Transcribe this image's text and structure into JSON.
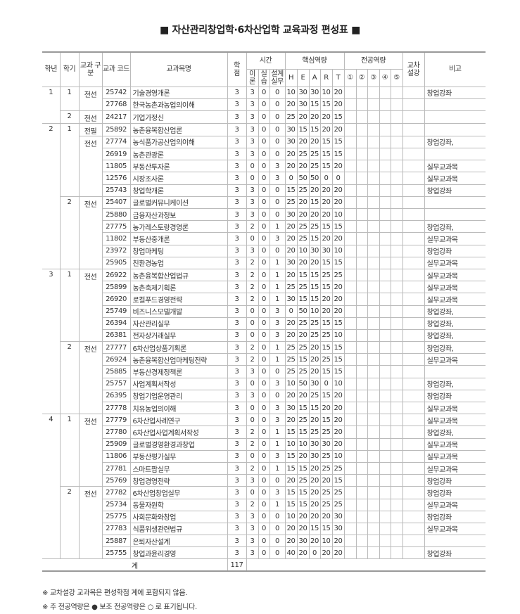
{
  "title": "■ 자산관리창업학·6차산업학 교육과정 편성표 ■",
  "header": {
    "year": "학년",
    "semester": "학기",
    "type": "교과 구분",
    "code": "교과 코드",
    "name": "교과목명",
    "credit": "학 점",
    "time": "시간",
    "theory": "이 론",
    "practice": "실 습",
    "design": "설계 실무",
    "core": "핵심역량",
    "core_items": [
      "H",
      "E",
      "A",
      "R",
      "T"
    ],
    "major": "전공역량",
    "major_items": [
      "①",
      "②",
      "③",
      "④",
      "⑤"
    ],
    "cross": "교차 설강",
    "note": "비고"
  },
  "rows": [
    [
      "1",
      "1",
      "전선",
      "25742",
      "기술경영개론",
      "3",
      "3",
      "0",
      "0",
      "10",
      "30",
      "30",
      "10",
      "20",
      "창업강좌"
    ],
    [
      "",
      "",
      "",
      "27768",
      "한국농촌과농업의이해",
      "3",
      "3",
      "0",
      "0",
      "20",
      "30",
      "15",
      "15",
      "20",
      ""
    ],
    [
      "",
      "2",
      "전선",
      "24217",
      "기업가정신",
      "3",
      "3",
      "0",
      "0",
      "25",
      "20",
      "20",
      "20",
      "15",
      ""
    ],
    [
      "2",
      "1",
      "전필",
      "25892",
      "농촌융복합산업론",
      "3",
      "3",
      "0",
      "0",
      "30",
      "15",
      "15",
      "20",
      "20",
      ""
    ],
    [
      "",
      "",
      "전선",
      "27774",
      "농식품가공산업의이해",
      "3",
      "3",
      "0",
      "0",
      "30",
      "20",
      "20",
      "15",
      "15",
      "창업강좌,"
    ],
    [
      "",
      "",
      "",
      "26919",
      "농촌관광론",
      "3",
      "3",
      "0",
      "0",
      "20",
      "25",
      "25",
      "15",
      "15",
      ""
    ],
    [
      "",
      "",
      "",
      "11805",
      "부동산투자론",
      "3",
      "0",
      "0",
      "3",
      "20",
      "20",
      "25",
      "15",
      "20",
      "실무교과목"
    ],
    [
      "",
      "",
      "",
      "12576",
      "시장조사론",
      "3",
      "0",
      "0",
      "3",
      "0",
      "50",
      "50",
      "0",
      "0",
      "실무교과목"
    ],
    [
      "",
      "",
      "",
      "25743",
      "창업학개론",
      "3",
      "3",
      "0",
      "0",
      "15",
      "25",
      "20",
      "20",
      "20",
      "창업강좌"
    ],
    [
      "",
      "2",
      "전선",
      "25407",
      "글로벌커뮤니케이션",
      "3",
      "3",
      "0",
      "0",
      "25",
      "20",
      "15",
      "20",
      "20",
      ""
    ],
    [
      "",
      "",
      "",
      "25880",
      "금융자산과정보",
      "3",
      "3",
      "0",
      "0",
      "30",
      "20",
      "20",
      "20",
      "10",
      ""
    ],
    [
      "",
      "",
      "",
      "27775",
      "농가레스토랑경영론",
      "3",
      "2",
      "0",
      "1",
      "20",
      "25",
      "25",
      "15",
      "15",
      "창업강좌,"
    ],
    [
      "",
      "",
      "",
      "11802",
      "부동산중개론",
      "3",
      "0",
      "0",
      "3",
      "20",
      "25",
      "15",
      "20",
      "20",
      "실무교과목"
    ],
    [
      "",
      "",
      "",
      "23972",
      "창업마케팅",
      "3",
      "3",
      "0",
      "0",
      "20",
      "10",
      "30",
      "30",
      "10",
      "창업강좌"
    ],
    [
      "",
      "",
      "",
      "25905",
      "친환경농업",
      "3",
      "2",
      "0",
      "1",
      "30",
      "20",
      "20",
      "15",
      "15",
      "실무교과목"
    ],
    [
      "3",
      "1",
      "전선",
      "26922",
      "농촌융복합산업법규",
      "3",
      "2",
      "0",
      "1",
      "20",
      "15",
      "15",
      "25",
      "25",
      "실무교과목"
    ],
    [
      "",
      "",
      "",
      "25899",
      "농촌축제기획론",
      "3",
      "2",
      "0",
      "1",
      "25",
      "25",
      "15",
      "15",
      "20",
      "실무교과목"
    ],
    [
      "",
      "",
      "",
      "26920",
      "로컬푸드경영전략",
      "3",
      "2",
      "0",
      "1",
      "30",
      "15",
      "15",
      "20",
      "20",
      "실무교과목"
    ],
    [
      "",
      "",
      "",
      "25749",
      "비즈니스모델개발",
      "3",
      "0",
      "0",
      "3",
      "0",
      "50",
      "10",
      "20",
      "20",
      "창업강좌,"
    ],
    [
      "",
      "",
      "",
      "26394",
      "자산관리실무",
      "3",
      "0",
      "0",
      "3",
      "20",
      "25",
      "25",
      "15",
      "15",
      "창업강좌,"
    ],
    [
      "",
      "",
      "",
      "26381",
      "전자상거래실무",
      "3",
      "0",
      "0",
      "3",
      "20",
      "20",
      "25",
      "25",
      "10",
      "창업강좌,"
    ],
    [
      "",
      "2",
      "전선",
      "27777",
      "6차산업상품기획론",
      "3",
      "2",
      "0",
      "1",
      "25",
      "25",
      "20",
      "15",
      "15",
      "창업강좌,"
    ],
    [
      "",
      "",
      "",
      "26924",
      "농촌융복합산업마케팅전략",
      "3",
      "2",
      "0",
      "1",
      "25",
      "15",
      "20",
      "25",
      "15",
      "실무교과목"
    ],
    [
      "",
      "",
      "",
      "25885",
      "부동산경제정책론",
      "3",
      "3",
      "0",
      "0",
      "25",
      "25",
      "20",
      "15",
      "15",
      ""
    ],
    [
      "",
      "",
      "",
      "25757",
      "사업계획서작성",
      "3",
      "0",
      "0",
      "3",
      "10",
      "50",
      "30",
      "0",
      "10",
      "창업강좌,"
    ],
    [
      "",
      "",
      "",
      "26395",
      "창업기업운영관리",
      "3",
      "3",
      "0",
      "0",
      "20",
      "20",
      "25",
      "15",
      "20",
      "창업강좌"
    ],
    [
      "",
      "",
      "",
      "27778",
      "치유농업의이해",
      "3",
      "0",
      "0",
      "3",
      "30",
      "15",
      "15",
      "20",
      "20",
      "실무교과목"
    ],
    [
      "4",
      "1",
      "전선",
      "27779",
      "6차산업사례연구",
      "3",
      "0",
      "0",
      "3",
      "20",
      "25",
      "20",
      "15",
      "20",
      "실무교과목"
    ],
    [
      "",
      "",
      "",
      "27780",
      "6차산업사업계획서작성",
      "3",
      "2",
      "0",
      "1",
      "15",
      "15",
      "25",
      "25",
      "20",
      "창업강좌,"
    ],
    [
      "",
      "",
      "",
      "25909",
      "글로벌경영환경과창업",
      "3",
      "2",
      "0",
      "1",
      "10",
      "10",
      "30",
      "30",
      "20",
      "실무교과목"
    ],
    [
      "",
      "",
      "",
      "11806",
      "부동산평가실무",
      "3",
      "0",
      "0",
      "3",
      "15",
      "20",
      "30",
      "25",
      "10",
      "실무교과목"
    ],
    [
      "",
      "",
      "",
      "27781",
      "스마트팜실무",
      "3",
      "2",
      "0",
      "1",
      "15",
      "15",
      "20",
      "25",
      "25",
      "실무교과목"
    ],
    [
      "",
      "",
      "",
      "25769",
      "창업경영전략",
      "3",
      "3",
      "0",
      "0",
      "20",
      "25",
      "20",
      "20",
      "15",
      "창업강좌"
    ],
    [
      "",
      "2",
      "전선",
      "27782",
      "6차산업창업실무",
      "3",
      "0",
      "0",
      "3",
      "15",
      "15",
      "20",
      "25",
      "25",
      "창업강좌"
    ],
    [
      "",
      "",
      "",
      "25734",
      "동물자원학",
      "3",
      "2",
      "0",
      "1",
      "15",
      "15",
      "20",
      "25",
      "25",
      "실무교과목"
    ],
    [
      "",
      "",
      "",
      "25775",
      "사회문화와창업",
      "3",
      "3",
      "0",
      "0",
      "10",
      "20",
      "20",
      "20",
      "30",
      "창업강좌"
    ],
    [
      "",
      "",
      "",
      "27783",
      "식품위생관련법규",
      "3",
      "3",
      "0",
      "0",
      "20",
      "20",
      "15",
      "15",
      "30",
      "실무교과목"
    ],
    [
      "",
      "",
      "",
      "25887",
      "은퇴자산설계",
      "3",
      "3",
      "0",
      "0",
      "20",
      "30",
      "20",
      "10",
      "20",
      ""
    ],
    [
      "",
      "",
      "",
      "25755",
      "창업과윤리경영",
      "3",
      "3",
      "0",
      "0",
      "40",
      "20",
      "0",
      "20",
      "20",
      "창업강좌"
    ]
  ],
  "total": {
    "label": "계",
    "credits": "117"
  },
  "footnotes": [
    "※ 교차설강 교과목은 편성학점 계에 포함되지 않음.",
    "※ 주 전공역량은 ● 보조 전공역량은 ○ 로 표기됩니다."
  ]
}
